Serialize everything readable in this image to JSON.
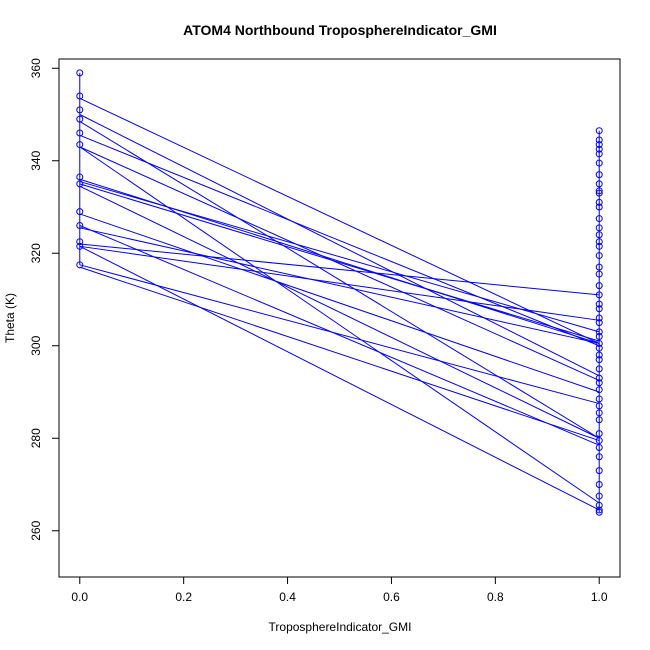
{
  "chart_data": {
    "type": "line",
    "title": "ATOM4 Northbound TroposphereIndicator_GMI",
    "xlabel": "TroposphereIndicator_GMI",
    "ylabel": "Theta (K)",
    "xlim": [
      -0.04,
      1.04
    ],
    "ylim": [
      250,
      362
    ],
    "x_ticks": [
      0.0,
      0.2,
      0.4,
      0.6,
      0.8,
      1.0
    ],
    "x_tick_labels": [
      "0.0",
      "0.2",
      "0.4",
      "0.6",
      "0.8",
      "1.0"
    ],
    "y_ticks": [
      260,
      280,
      300,
      320,
      340,
      360
    ],
    "y_tick_labels": [
      "260",
      "280",
      "300",
      "320",
      "340",
      "360"
    ],
    "grid": false,
    "color": "#0000ff",
    "marker": "open-circle",
    "segments": [
      {
        "x": [
          0,
          1
        ],
        "y": [
          353.5,
          300.5
        ]
      },
      {
        "x": [
          0,
          1
        ],
        "y": [
          350.0,
          293.5
        ]
      },
      {
        "x": [
          0,
          1
        ],
        "y": [
          348.5,
          280.0
        ]
      },
      {
        "x": [
          0,
          1
        ],
        "y": [
          345.5,
          300.0
        ]
      },
      {
        "x": [
          0,
          1
        ],
        "y": [
          343.0,
          292.5
        ]
      },
      {
        "x": [
          0,
          1
        ],
        "y": [
          343.0,
          266.0
        ]
      },
      {
        "x": [
          0,
          1
        ],
        "y": [
          336.0,
          300.5
        ]
      },
      {
        "x": [
          0,
          1
        ],
        "y": [
          335.5,
          303.0
        ]
      },
      {
        "x": [
          0,
          1
        ],
        "y": [
          335.0,
          301.0
        ]
      },
      {
        "x": [
          0,
          1
        ],
        "y": [
          334.5,
          280.0
        ]
      },
      {
        "x": [
          0,
          1
        ],
        "y": [
          328.5,
          290.0
        ]
      },
      {
        "x": [
          0,
          1
        ],
        "y": [
          326.0,
          278.5
        ]
      },
      {
        "x": [
          0,
          1
        ],
        "y": [
          325.5,
          300.5
        ]
      },
      {
        "x": [
          0,
          1
        ],
        "y": [
          322.0,
          311.0
        ]
      },
      {
        "x": [
          0,
          1
        ],
        "y": [
          321.5,
          305.5
        ]
      },
      {
        "x": [
          0,
          1
        ],
        "y": [
          321.5,
          264.5
        ]
      },
      {
        "x": [
          0,
          1
        ],
        "y": [
          317.5,
          287.5
        ]
      },
      {
        "x": [
          0,
          1
        ],
        "y": [
          317.0,
          279.5
        ]
      }
    ],
    "points_x0": [
      359,
      354,
      351,
      349,
      346,
      343.5,
      336.5,
      335,
      329,
      326,
      322.5,
      321.5,
      317.5
    ],
    "points_x1": [
      346.5,
      344.5,
      343.5,
      342.5,
      341.5,
      339.5,
      337,
      335,
      333.5,
      333,
      331,
      330,
      327.5,
      325.5,
      324,
      322.5,
      321.5,
      319.5,
      317,
      315.5,
      313,
      311,
      309,
      308,
      306,
      305,
      303,
      302,
      300.5,
      299.5,
      298,
      297,
      295,
      293,
      292,
      290.5,
      288.5,
      287,
      285.5,
      284,
      281,
      279.5,
      278,
      276,
      273,
      270,
      267.5,
      265.5,
      264.5,
      264
    ]
  }
}
